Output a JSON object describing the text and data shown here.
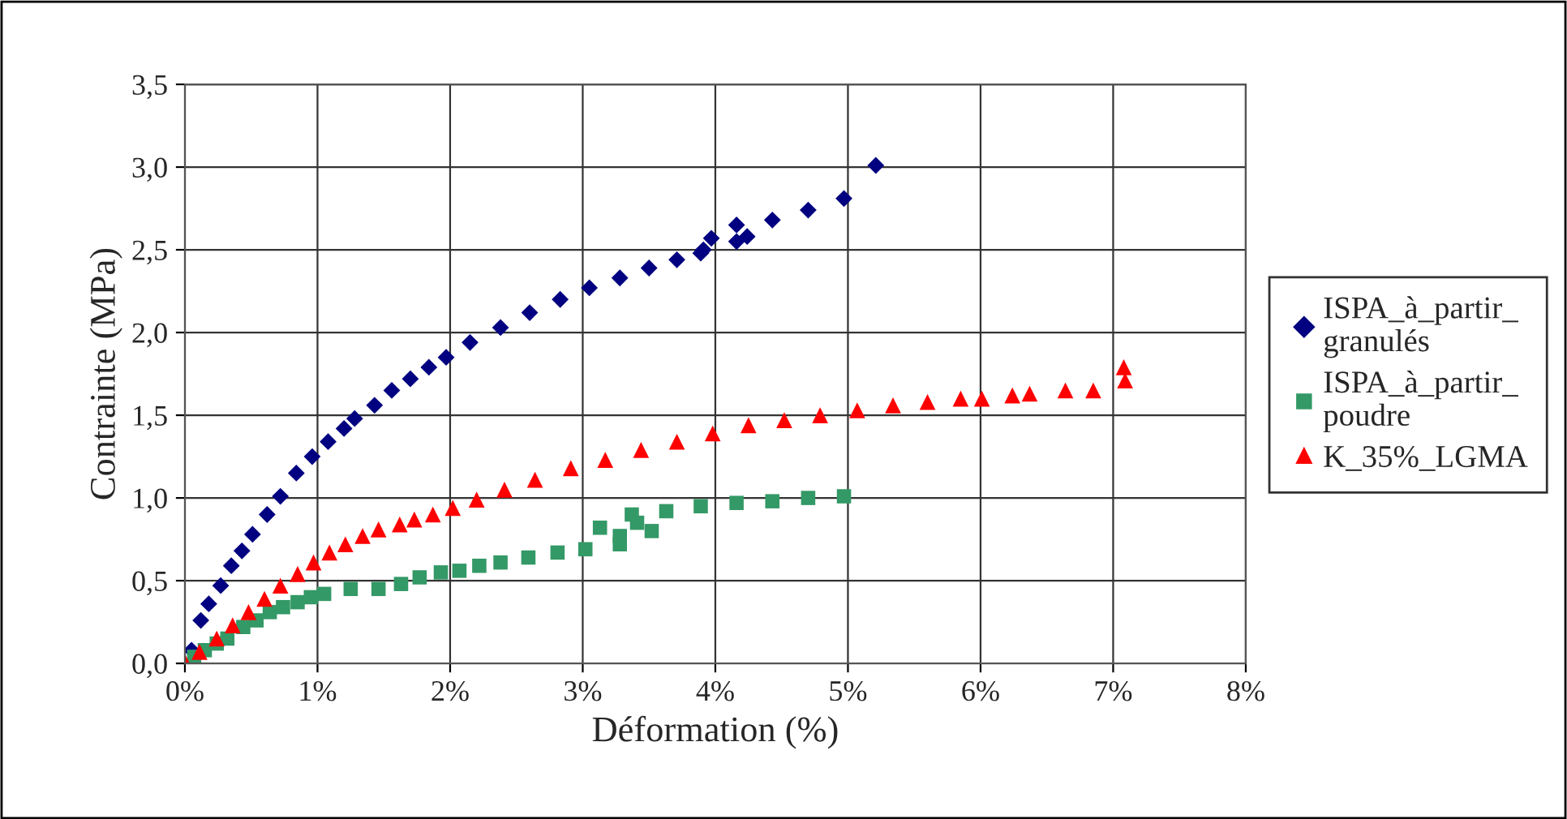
{
  "chart_data": {
    "type": "scatter",
    "xlabel": "Déformation (%)",
    "ylabel": "Contrainte (MPa)",
    "xlim": [
      0,
      8
    ],
    "ylim": [
      0,
      3.5
    ],
    "xticks": [
      {
        "value": 0,
        "label": "0%"
      },
      {
        "value": 1,
        "label": "1%"
      },
      {
        "value": 2,
        "label": "2%"
      },
      {
        "value": 3,
        "label": "3%"
      },
      {
        "value": 4,
        "label": "4%"
      },
      {
        "value": 5,
        "label": "5%"
      },
      {
        "value": 6,
        "label": "6%"
      },
      {
        "value": 7,
        "label": "7%"
      },
      {
        "value": 8,
        "label": "8%"
      }
    ],
    "yticks": [
      {
        "value": 0,
        "label": "0,0"
      },
      {
        "value": 0.5,
        "label": "0,5"
      },
      {
        "value": 1,
        "label": "1,0"
      },
      {
        "value": 1.5,
        "label": "1,5"
      },
      {
        "value": 2,
        "label": "2,0"
      },
      {
        "value": 2.5,
        "label": "2,5"
      },
      {
        "value": 3,
        "label": "3,0"
      },
      {
        "value": 3.5,
        "label": "3,5"
      }
    ],
    "grid": true,
    "legend": "right",
    "series": [
      {
        "name": "ISPA_à_partir_granulés",
        "color": "#000080",
        "marker": "diamond",
        "x": [
          0.05,
          0.12,
          0.18,
          0.27,
          0.35,
          0.43,
          0.51,
          0.62,
          0.72,
          0.84,
          0.96,
          1.08,
          1.2,
          1.28,
          1.43,
          1.56,
          1.7,
          1.84,
          1.97,
          2.15,
          2.38,
          2.6,
          2.83,
          3.05,
          3.28,
          3.5,
          3.71,
          3.89,
          3.91,
          3.97,
          4.16,
          4.16,
          4.24,
          4.43,
          4.7,
          4.97,
          5.21
        ],
        "values": [
          0.08,
          0.26,
          0.36,
          0.47,
          0.59,
          0.68,
          0.78,
          0.9,
          1.01,
          1.15,
          1.25,
          1.34,
          1.42,
          1.48,
          1.56,
          1.65,
          1.72,
          1.79,
          1.85,
          1.94,
          2.03,
          2.12,
          2.2,
          2.27,
          2.33,
          2.39,
          2.44,
          2.48,
          2.5,
          2.57,
          2.55,
          2.65,
          2.58,
          2.68,
          2.74,
          2.81,
          3.01
        ]
      },
      {
        "name": "ISPA_à_partir_poudre",
        "color": "#339966",
        "marker": "square",
        "x": [
          0.07,
          0.15,
          0.24,
          0.32,
          0.44,
          0.54,
          0.64,
          0.74,
          0.85,
          0.95,
          1.05,
          1.25,
          1.46,
          1.63,
          1.77,
          1.93,
          2.07,
          2.22,
          2.38,
          2.59,
          2.81,
          3.02,
          3.13,
          3.28,
          3.28,
          3.37,
          3.41,
          3.52,
          3.63,
          3.89,
          4.16,
          4.43,
          4.7,
          4.97
        ],
        "values": [
          0.04,
          0.08,
          0.12,
          0.15,
          0.22,
          0.26,
          0.31,
          0.34,
          0.37,
          0.4,
          0.42,
          0.45,
          0.45,
          0.48,
          0.52,
          0.55,
          0.56,
          0.59,
          0.61,
          0.64,
          0.67,
          0.69,
          0.82,
          0.72,
          0.77,
          0.9,
          0.85,
          0.8,
          0.92,
          0.95,
          0.97,
          0.98,
          1.0,
          1.01
        ]
      },
      {
        "name": "K_35%_LGMA",
        "color": "#ff0000",
        "marker": "triangle",
        "x": [
          0,
          0.11,
          0.24,
          0.36,
          0.48,
          0.6,
          0.72,
          0.85,
          0.97,
          1.09,
          1.21,
          1.34,
          1.46,
          1.62,
          1.73,
          1.87,
          2.02,
          2.2,
          2.41,
          2.64,
          2.91,
          3.17,
          3.44,
          3.71,
          3.98,
          4.25,
          4.52,
          4.79,
          5.07,
          5.34,
          5.6,
          5.85,
          6.01,
          6.24,
          6.37,
          6.64,
          6.85,
          7.08,
          7.09
        ],
        "values": [
          0.01,
          0.07,
          0.15,
          0.23,
          0.31,
          0.39,
          0.47,
          0.54,
          0.61,
          0.67,
          0.72,
          0.77,
          0.81,
          0.84,
          0.87,
          0.9,
          0.94,
          0.99,
          1.05,
          1.11,
          1.18,
          1.23,
          1.29,
          1.34,
          1.39,
          1.44,
          1.47,
          1.5,
          1.53,
          1.56,
          1.58,
          1.6,
          1.6,
          1.62,
          1.63,
          1.65,
          1.65,
          1.79,
          1.71
        ]
      }
    ]
  }
}
